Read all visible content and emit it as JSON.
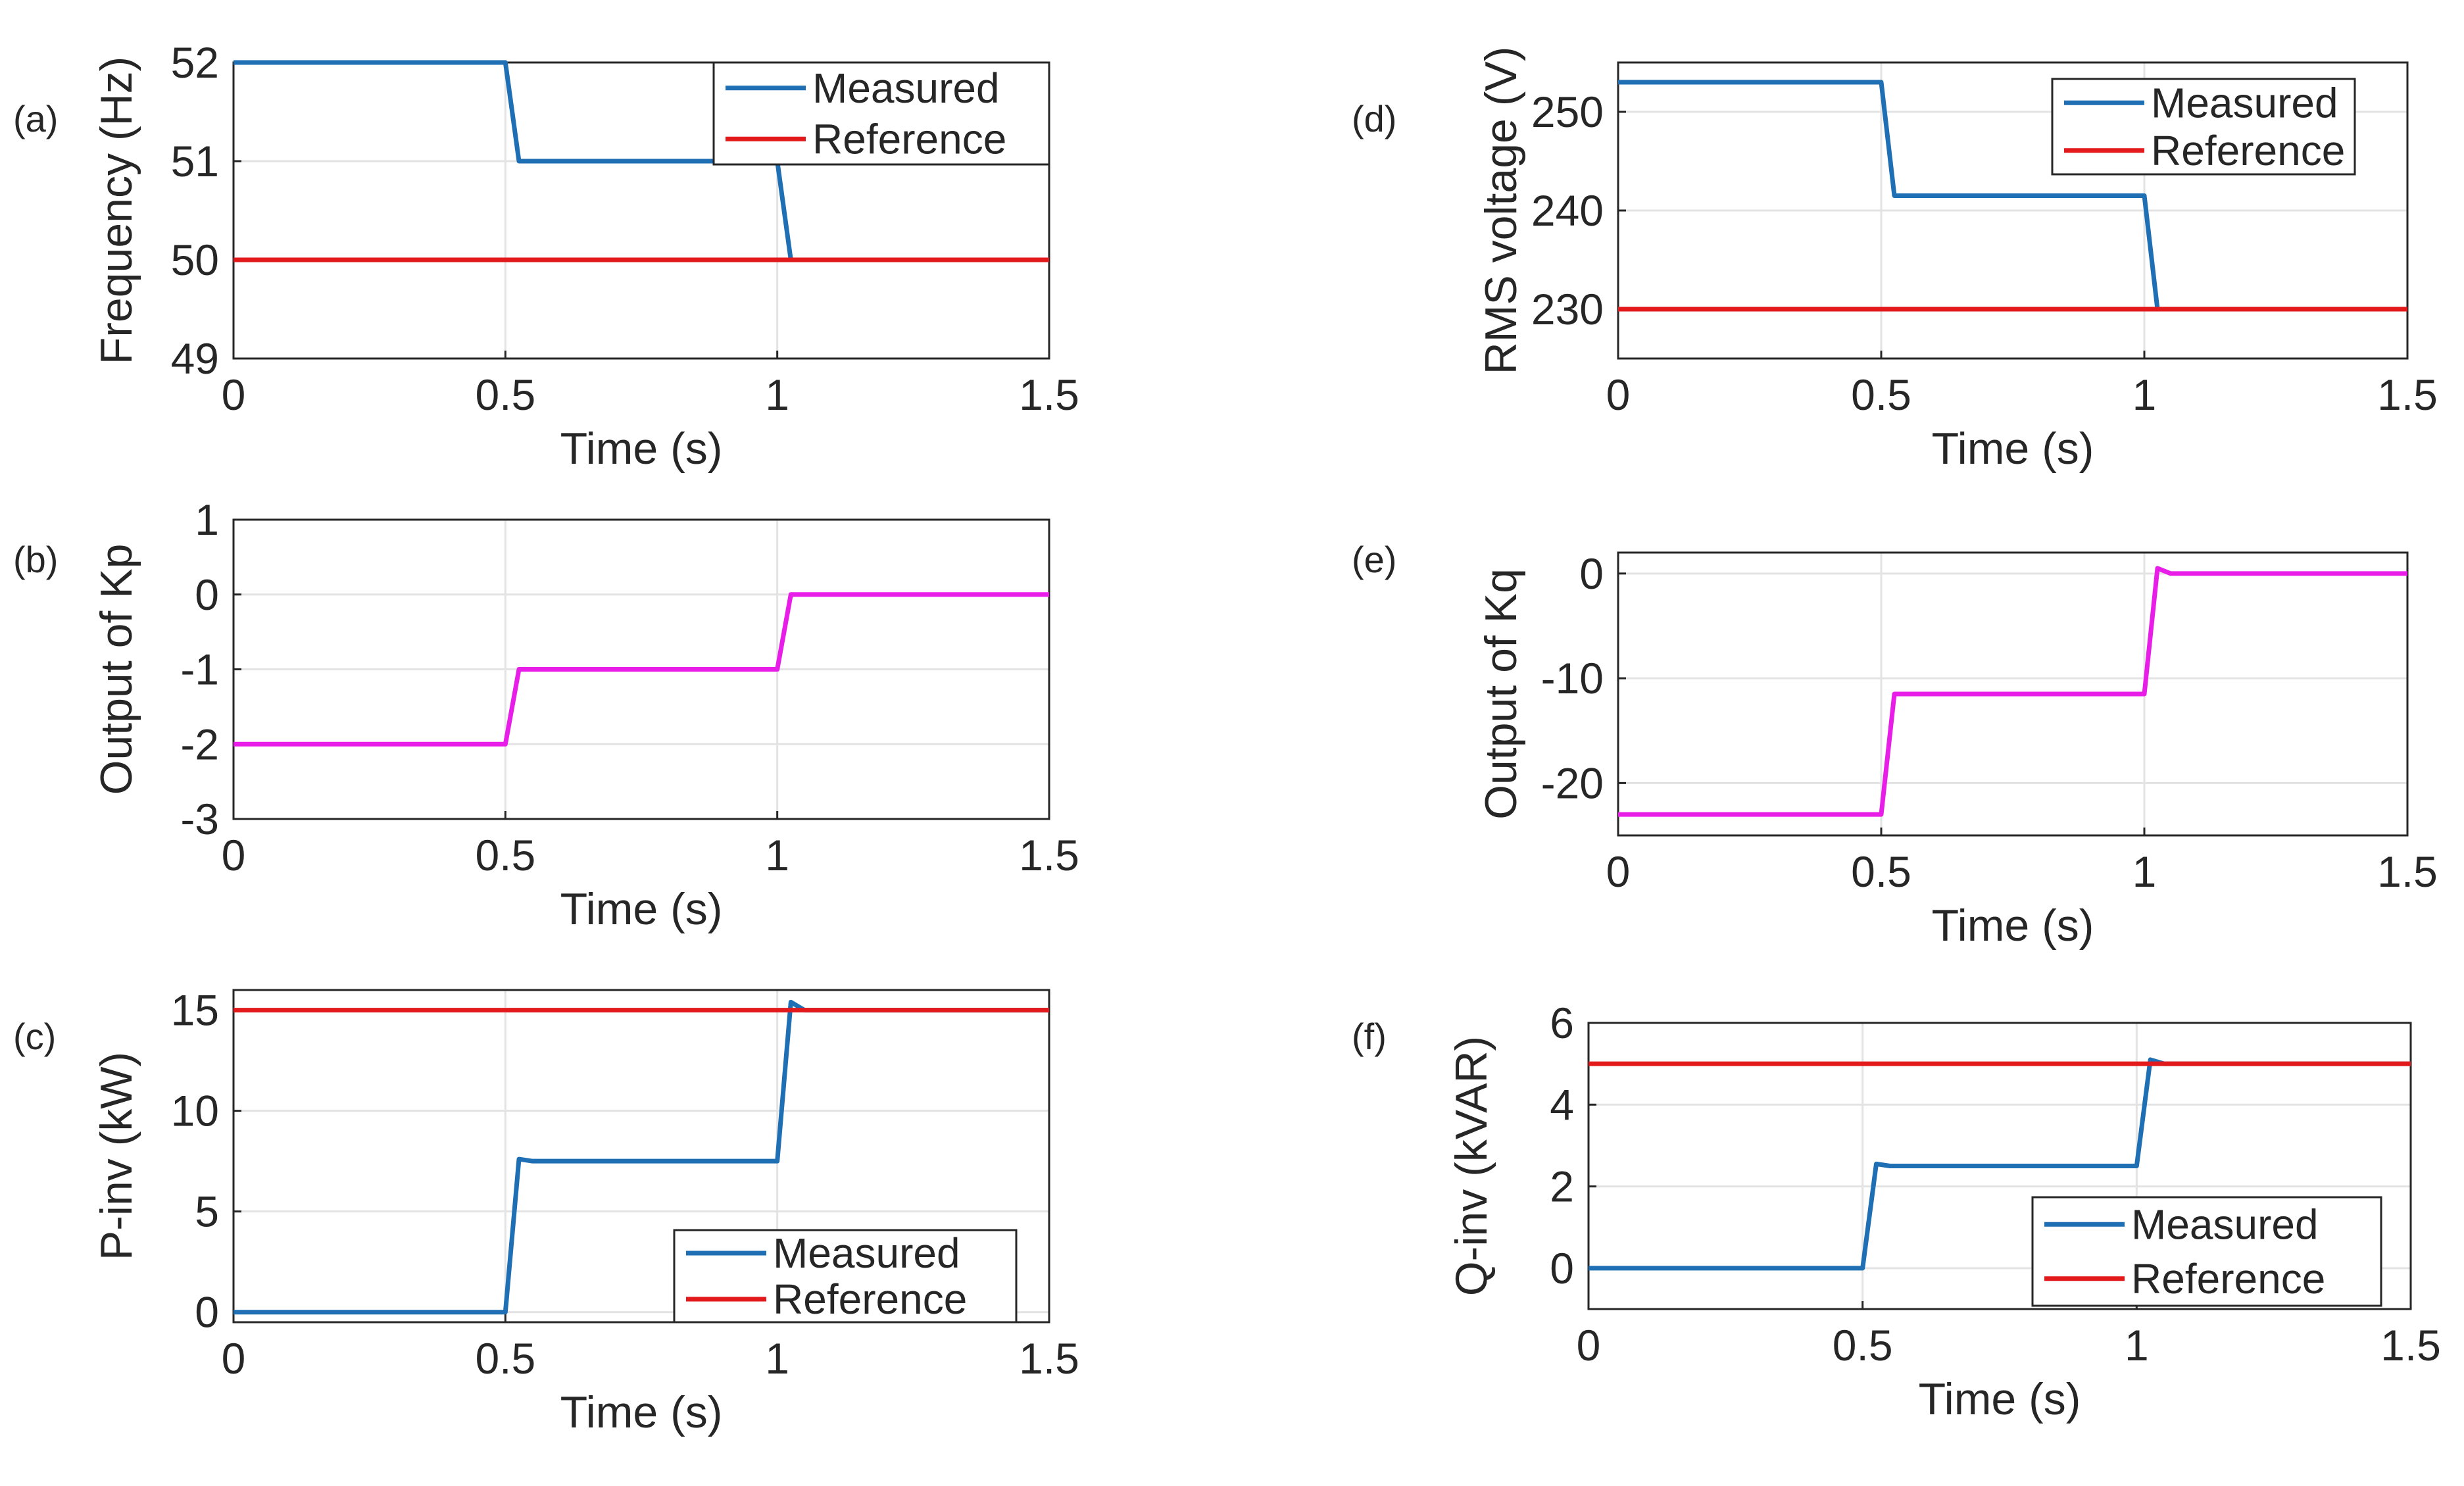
{
  "chart_data": [
    {
      "id": "a",
      "panel_label": "(a)",
      "type": "line",
      "xlabel": "Time (s)",
      "ylabel": "Frequency (Hz)",
      "xlim": [
        0,
        1.5
      ],
      "ylim": [
        49,
        52
      ],
      "xticks": [
        "0",
        "0.5",
        "1",
        "1.5"
      ],
      "yticks": [
        "49",
        "50",
        "51",
        "52"
      ],
      "legend": "top-right",
      "series": [
        {
          "name": "Measured",
          "color": "#1f6fb4",
          "x": [
            0,
            0.5,
            0.525,
            0.55,
            1.0,
            1.025,
            1.5
          ],
          "y": [
            52,
            52,
            51,
            51,
            51,
            50,
            50
          ]
        },
        {
          "name": "Reference",
          "color": "#e31a1c",
          "x": [
            0,
            1.5
          ],
          "y": [
            50,
            50
          ]
        }
      ]
    },
    {
      "id": "b",
      "panel_label": "(b)",
      "type": "line",
      "xlabel": "Time (s)",
      "ylabel": "Output of Kp",
      "xlim": [
        0,
        1.5
      ],
      "ylim": [
        -3,
        1
      ],
      "xticks": [
        "0",
        "0.5",
        "1",
        "1.5"
      ],
      "yticks": [
        "-3",
        "-2",
        "-1",
        "0",
        "1"
      ],
      "legend": "none",
      "series": [
        {
          "name": "Output of Kp",
          "color": "#e81ee8",
          "x": [
            0,
            0.5,
            0.525,
            1.0,
            1.025,
            1.5
          ],
          "y": [
            -2,
            -2,
            -1,
            -1,
            0,
            0
          ]
        }
      ]
    },
    {
      "id": "c",
      "panel_label": "(c)",
      "type": "line",
      "xlabel": "Time (s)",
      "ylabel": "P-inv (kW)",
      "xlim": [
        0,
        1.5
      ],
      "ylim": [
        -0.5,
        16
      ],
      "xticks": [
        "0",
        "0.5",
        "1",
        "1.5"
      ],
      "yticks": [
        "0",
        "5",
        "10",
        "15"
      ],
      "legend": "bottom-right",
      "series": [
        {
          "name": "Measured",
          "color": "#1f6fb4",
          "x": [
            0,
            0.5,
            0.525,
            0.55,
            1.0,
            1.025,
            1.05,
            1.5
          ],
          "y": [
            0,
            0,
            7.6,
            7.5,
            7.5,
            15.4,
            15,
            15
          ]
        },
        {
          "name": "Reference",
          "color": "#e31a1c",
          "x": [
            0,
            1.5
          ],
          "y": [
            15,
            15
          ]
        }
      ]
    },
    {
      "id": "d",
      "panel_label": "(d)",
      "type": "line",
      "xlabel": "Time (s)",
      "ylabel": "RMS voltage (V)",
      "xlim": [
        0,
        1.5
      ],
      "ylim": [
        225,
        255
      ],
      "xticks": [
        "0",
        "0.5",
        "1",
        "1.5"
      ],
      "yticks": [
        "230",
        "240",
        "250"
      ],
      "legend": "top-right",
      "series": [
        {
          "name": "Measured",
          "color": "#1f6fb4",
          "x": [
            0,
            0.5,
            0.525,
            0.55,
            1.0,
            1.025,
            1.5
          ],
          "y": [
            253,
            253,
            241.5,
            241.5,
            241.5,
            230,
            230
          ]
        },
        {
          "name": "Reference",
          "color": "#e31a1c",
          "x": [
            0,
            1.5
          ],
          "y": [
            230,
            230
          ]
        }
      ]
    },
    {
      "id": "e",
      "panel_label": "(e)",
      "type": "line",
      "xlabel": "Time (s)",
      "ylabel": "Output of Kq",
      "xlim": [
        0,
        1.5
      ],
      "ylim": [
        -25,
        2
      ],
      "xticks": [
        "0",
        "0.5",
        "1",
        "1.5"
      ],
      "yticks": [
        "-20",
        "-10",
        "0"
      ],
      "legend": "none",
      "series": [
        {
          "name": "Output of Kq",
          "color": "#e81ee8",
          "x": [
            0,
            0.5,
            0.525,
            1.0,
            1.025,
            1.05,
            1.5
          ],
          "y": [
            -23,
            -23,
            -11.5,
            -11.5,
            0.5,
            0,
            0
          ]
        }
      ]
    },
    {
      "id": "f",
      "panel_label": "(f)",
      "type": "line",
      "xlabel": "Time (s)",
      "ylabel": "Q-inv (kVAR)",
      "xlim": [
        0,
        1.5
      ],
      "ylim": [
        -1,
        6
      ],
      "xticks": [
        "0",
        "0.5",
        "1",
        "1.5"
      ],
      "yticks": [
        "0",
        "2",
        "4",
        "6"
      ],
      "legend": "bottom-right",
      "series": [
        {
          "name": "Measured",
          "color": "#1f6fb4",
          "x": [
            0,
            0.5,
            0.525,
            0.55,
            1.0,
            1.025,
            1.05,
            1.5
          ],
          "y": [
            0,
            0,
            2.55,
            2.5,
            2.5,
            5.1,
            5,
            5
          ]
        },
        {
          "name": "Reference",
          "color": "#e31a1c",
          "x": [
            0,
            1.5
          ],
          "y": [
            5,
            5
          ]
        }
      ]
    }
  ]
}
